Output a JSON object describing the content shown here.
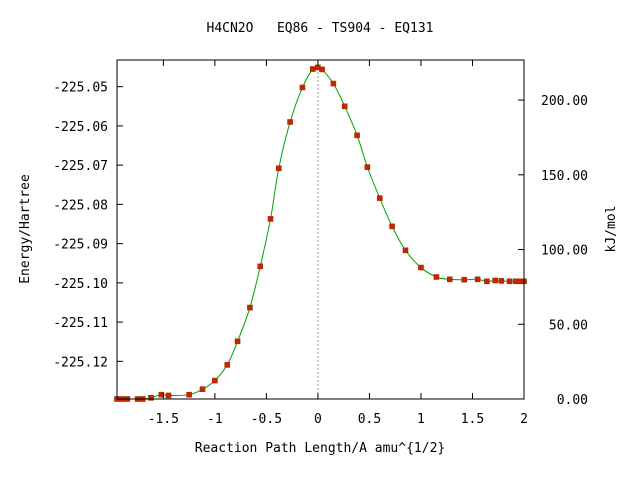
{
  "chart_data": {
    "type": "line",
    "title": "H4CN2O   EQ86 - TS904 - EQ131",
    "xlabel": "Reaction Path Length/A amu^{1/2}",
    "ylabel": "Energy/Hartree",
    "y2label": "kJ/mol",
    "xlim": [
      -1.95,
      2.0
    ],
    "ylim": [
      -225.1296,
      -225.0432
    ],
    "y2lim": [
      0.0,
      226.8
    ],
    "x_ticks": [
      -1.5,
      -1,
      -0.5,
      0,
      0.5,
      1,
      1.5,
      2
    ],
    "x_tick_labels": [
      "-1.5",
      "-1",
      "-0.5",
      "0",
      "0.5",
      "1",
      "1.5",
      "2"
    ],
    "y_ticks": [
      -225.12,
      -225.11,
      -225.1,
      -225.09,
      -225.08,
      -225.07,
      -225.06,
      -225.05
    ],
    "y_tick_labels": [
      "-225.12",
      "-225.11",
      "-225.10",
      "-225.09",
      "-225.08",
      "-225.07",
      "-225.06",
      "-225.05"
    ],
    "y2_ticks": [
      0,
      50,
      100,
      150,
      200
    ],
    "y2_tick_labels": [
      "0.00",
      "50.00",
      "100.00",
      "150.00",
      "200.00"
    ],
    "ts_x": 0.0,
    "grid": false,
    "colors": {
      "curve": "#00a000",
      "points": "#cc2200",
      "marker_edge": "#993300",
      "ts_line": "#999999",
      "frame": "#000000"
    },
    "series": [
      {
        "x": [
          -1.95,
          -1.9,
          -1.85,
          -1.75,
          -1.7,
          -1.62,
          -1.52,
          -1.45,
          -1.25,
          -1.12,
          -1.0,
          -0.88,
          -0.78,
          -0.66,
          -0.56,
          -0.46,
          -0.38,
          -0.27,
          -0.15,
          -0.05,
          0.0,
          0.04,
          0.15,
          0.26,
          0.38,
          0.48,
          0.6,
          0.72,
          0.85,
          1.0,
          1.15,
          1.28,
          1.42,
          1.55,
          1.64,
          1.72,
          1.78,
          1.86,
          1.92,
          1.96,
          2.0
        ],
        "y": [
          -225.1296,
          -225.1296,
          -225.1296,
          -225.1296,
          -225.1296,
          -225.1293,
          -225.1285,
          -225.1287,
          -225.1285,
          -225.1271,
          -225.1249,
          -225.1209,
          -225.1149,
          -225.1063,
          -225.0958,
          -225.0837,
          -225.0708,
          -225.059,
          -225.0502,
          -225.0455,
          -225.0451,
          -225.0456,
          -225.0492,
          -225.055,
          -225.0624,
          -225.0705,
          -225.0784,
          -225.0856,
          -225.0917,
          -225.0961,
          -225.0985,
          -225.0991,
          -225.0992,
          -225.0991,
          -225.0996,
          -225.0994,
          -225.0995,
          -225.0996,
          -225.0996,
          -225.0996,
          -225.0996
        ]
      }
    ]
  }
}
